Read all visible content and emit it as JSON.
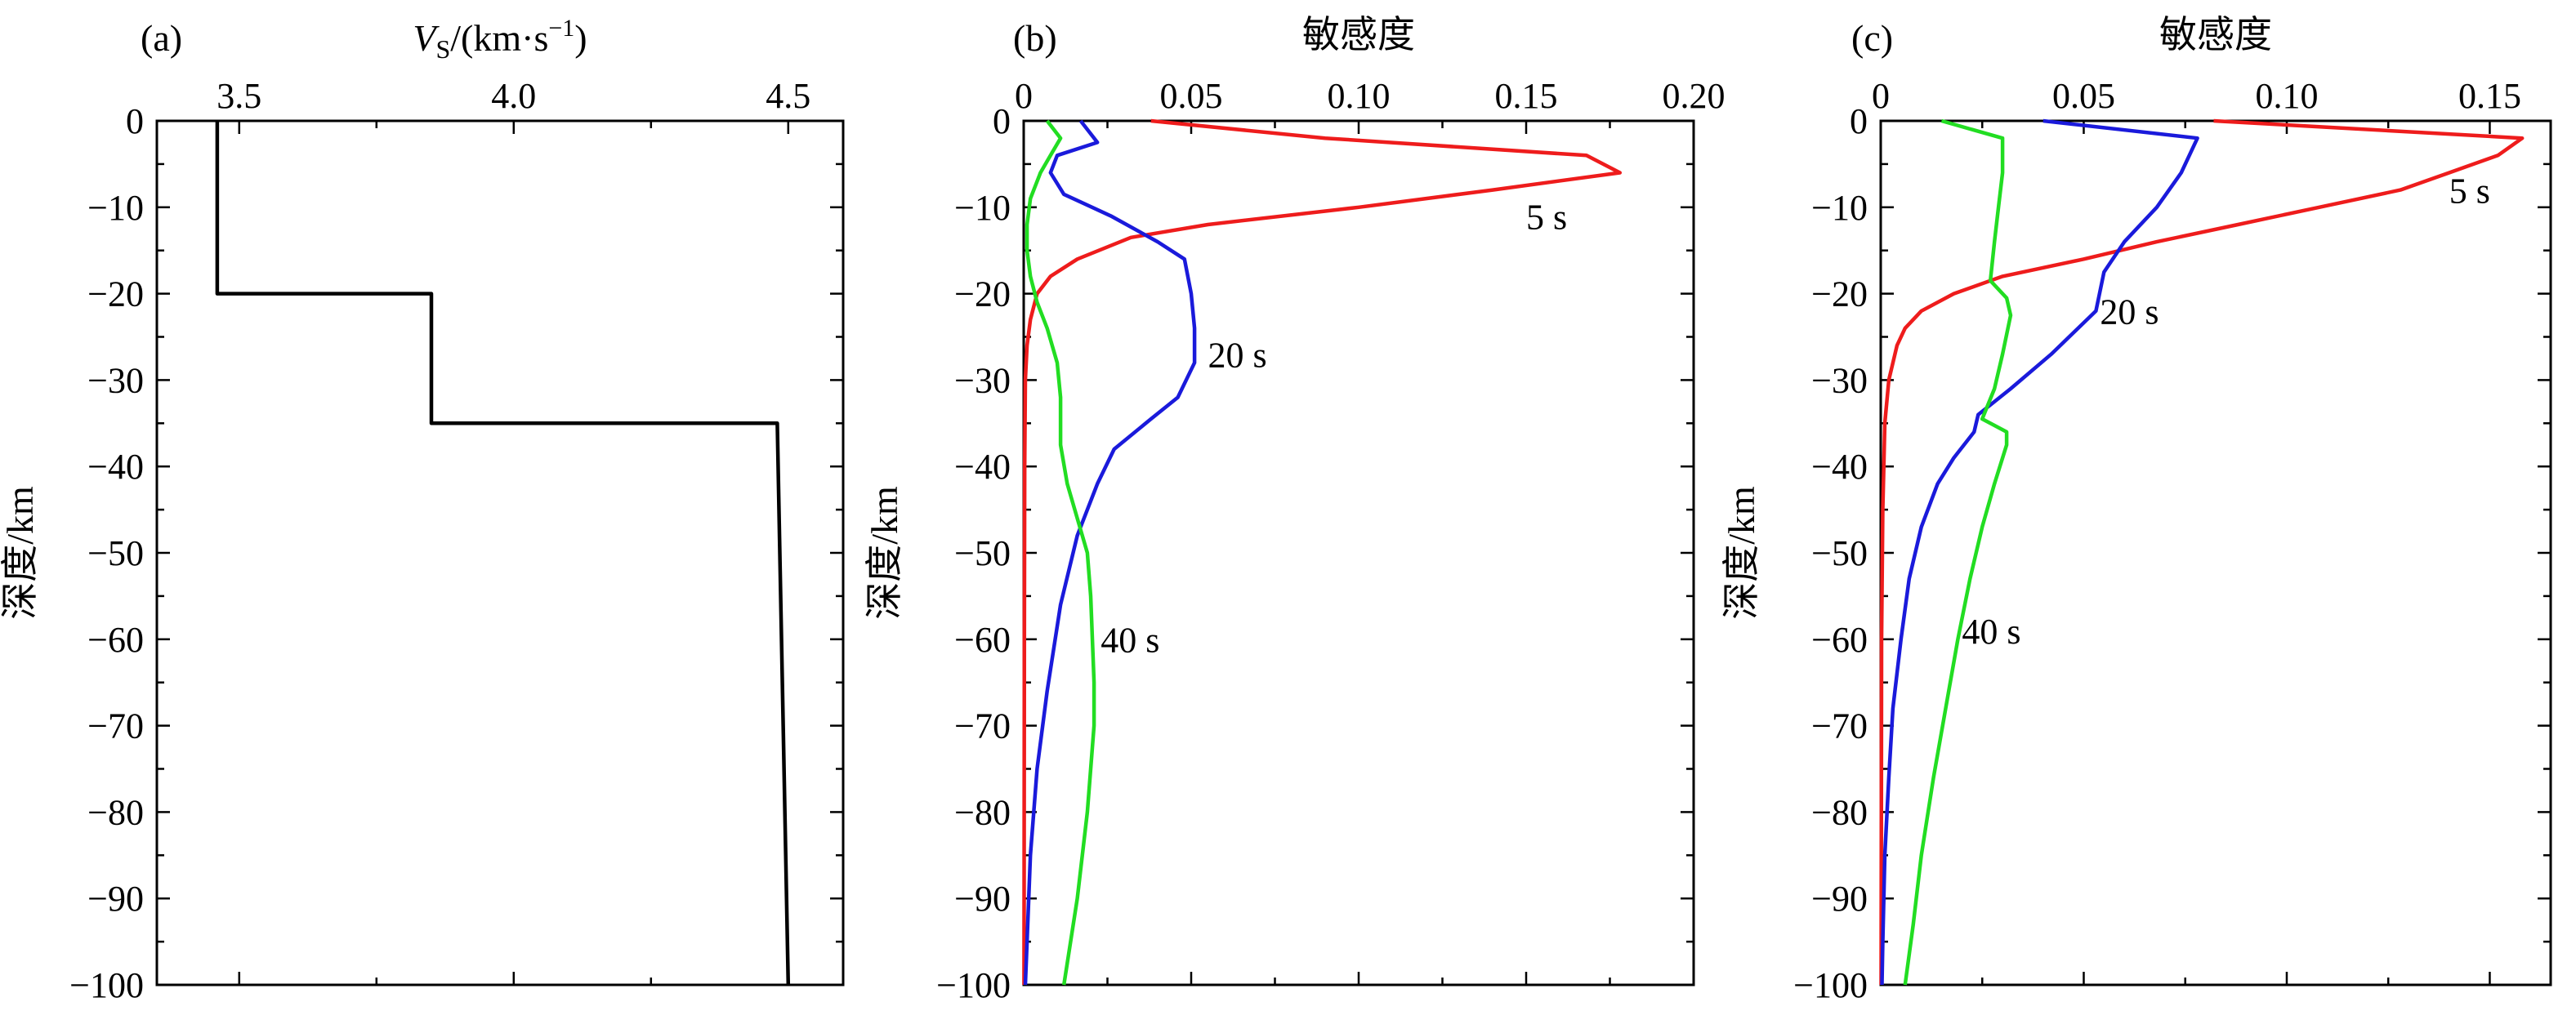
{
  "chart_data": [
    {
      "type": "line",
      "panel_label": "(a)",
      "xlabel_var": "V",
      "xlabel_sub": "S",
      "xlabel_unit": "/(km·s",
      "xlabel_sup": "−1",
      "xlabel_close": ")",
      "ylabel": "深度/km",
      "xlim": [
        3.35,
        4.6
      ],
      "ylim": [
        -100,
        0
      ],
      "x_ticks": [
        {
          "value": 3.5,
          "label": "3.5"
        },
        {
          "value": 4.0,
          "label": "4.0"
        },
        {
          "value": 4.5,
          "label": "4.5"
        }
      ],
      "y_ticks": [
        {
          "value": 0,
          "label": "0"
        },
        {
          "value": -10,
          "label": "−10"
        },
        {
          "value": -20,
          "label": "−20"
        },
        {
          "value": -30,
          "label": "−30"
        },
        {
          "value": -40,
          "label": "−40"
        },
        {
          "value": -50,
          "label": "−50"
        },
        {
          "value": -60,
          "label": "−60"
        },
        {
          "value": -70,
          "label": "−70"
        },
        {
          "value": -80,
          "label": "−80"
        },
        {
          "value": -90,
          "label": "−90"
        },
        {
          "value": -100,
          "label": "−100"
        }
      ],
      "series": [
        {
          "color": "#000000",
          "points": [
            [
              3.46,
              0
            ],
            [
              3.46,
              -20
            ],
            [
              3.85,
              -20
            ],
            [
              3.85,
              -35
            ],
            [
              4.48,
              -35
            ],
            [
              4.5,
              -100
            ]
          ]
        }
      ],
      "annotations": []
    },
    {
      "type": "line",
      "panel_label": "(b)",
      "xlabel": "敏感度",
      "ylabel": "深度/km",
      "xlim": [
        0,
        0.2
      ],
      "ylim": [
        -100,
        0
      ],
      "x_ticks": [
        {
          "value": 0,
          "label": "0"
        },
        {
          "value": 0.05,
          "label": "0.05"
        },
        {
          "value": 0.1,
          "label": "0.10"
        },
        {
          "value": 0.15,
          "label": "0.15"
        },
        {
          "value": 0.2,
          "label": "0.20"
        }
      ],
      "y_ticks": [
        {
          "value": 0,
          "label": "0"
        },
        {
          "value": -10,
          "label": "−10"
        },
        {
          "value": -20,
          "label": "−20"
        },
        {
          "value": -30,
          "label": "−30"
        },
        {
          "value": -40,
          "label": "−40"
        },
        {
          "value": -50,
          "label": "−50"
        },
        {
          "value": -60,
          "label": "−60"
        },
        {
          "value": -70,
          "label": "−70"
        },
        {
          "value": -80,
          "label": "−80"
        },
        {
          "value": -90,
          "label": "−90"
        },
        {
          "value": -100,
          "label": "−100"
        }
      ],
      "series": [
        {
          "color": "#ee1c1c",
          "points": [
            [
              0.038,
              0
            ],
            [
              0.09,
              -2
            ],
            [
              0.168,
              -4
            ],
            [
              0.178,
              -6
            ],
            [
              0.14,
              -8
            ],
            [
              0.1,
              -10
            ],
            [
              0.055,
              -12
            ],
            [
              0.032,
              -13.5
            ],
            [
              0.016,
              -16
            ],
            [
              0.008,
              -18
            ],
            [
              0.004,
              -20
            ],
            [
              0.002,
              -23
            ],
            [
              0.001,
              -26
            ],
            [
              0.0005,
              -30
            ],
            [
              0.0003,
              -40
            ],
            [
              0.0002,
              -60
            ],
            [
              0.0001,
              -100
            ]
          ]
        },
        {
          "color": "#1a1adb",
          "points": [
            [
              0.017,
              0
            ],
            [
              0.022,
              -2.5
            ],
            [
              0.01,
              -4
            ],
            [
              0.008,
              -6
            ],
            [
              0.012,
              -8.5
            ],
            [
              0.026,
              -11
            ],
            [
              0.04,
              -14
            ],
            [
              0.048,
              -16
            ],
            [
              0.05,
              -20
            ],
            [
              0.051,
              -24
            ],
            [
              0.051,
              -28
            ],
            [
              0.046,
              -32
            ],
            [
              0.038,
              -34.5
            ],
            [
              0.027,
              -38
            ],
            [
              0.022,
              -42
            ],
            [
              0.016,
              -48
            ],
            [
              0.011,
              -56
            ],
            [
              0.007,
              -66
            ],
            [
              0.004,
              -75
            ],
            [
              0.002,
              -85
            ],
            [
              0.001,
              -95
            ],
            [
              0.0005,
              -100
            ]
          ]
        },
        {
          "color": "#22dd22",
          "points": [
            [
              0.007,
              0
            ],
            [
              0.011,
              -2
            ],
            [
              0.008,
              -4
            ],
            [
              0.005,
              -6
            ],
            [
              0.002,
              -9
            ],
            [
              0.001,
              -12
            ],
            [
              0.001,
              -15
            ],
            [
              0.002,
              -18
            ],
            [
              0.004,
              -21
            ],
            [
              0.007,
              -24
            ],
            [
              0.01,
              -28
            ],
            [
              0.011,
              -32
            ],
            [
              0.011,
              -37.5
            ],
            [
              0.013,
              -42
            ],
            [
              0.016,
              -46
            ],
            [
              0.019,
              -50
            ],
            [
              0.02,
              -55
            ],
            [
              0.021,
              -65
            ],
            [
              0.021,
              -70
            ],
            [
              0.019,
              -80
            ],
            [
              0.016,
              -90
            ],
            [
              0.012,
              -100
            ]
          ]
        }
      ],
      "annotations": [
        {
          "text": "5 s",
          "x": 0.15,
          "y": -12.5
        },
        {
          "text": "20 s",
          "x": 0.055,
          "y": -28.5
        },
        {
          "text": "40 s",
          "x": 0.023,
          "y": -61.5
        }
      ]
    },
    {
      "type": "line",
      "panel_label": "(c)",
      "xlabel": "敏感度",
      "ylabel": "深度/km",
      "xlim": [
        0,
        0.165
      ],
      "ylim": [
        -100,
        0
      ],
      "x_ticks": [
        {
          "value": 0,
          "label": "0"
        },
        {
          "value": 0.05,
          "label": "0.05"
        },
        {
          "value": 0.1,
          "label": "0.10"
        },
        {
          "value": 0.15,
          "label": "0.15"
        }
      ],
      "y_ticks": [
        {
          "value": 0,
          "label": "0"
        },
        {
          "value": -10,
          "label": "−10"
        },
        {
          "value": -20,
          "label": "−20"
        },
        {
          "value": -30,
          "label": "−30"
        },
        {
          "value": -40,
          "label": "−40"
        },
        {
          "value": -50,
          "label": "−50"
        },
        {
          "value": -60,
          "label": "−60"
        },
        {
          "value": -70,
          "label": "−70"
        },
        {
          "value": -80,
          "label": "−80"
        },
        {
          "value": -90,
          "label": "−90"
        },
        {
          "value": -100,
          "label": "−100"
        }
      ],
      "series": [
        {
          "color": "#ee1c1c",
          "points": [
            [
              0.082,
              0
            ],
            [
              0.158,
              -2
            ],
            [
              0.152,
              -4
            ],
            [
              0.14,
              -6
            ],
            [
              0.128,
              -8
            ],
            [
              0.108,
              -10
            ],
            [
              0.088,
              -12
            ],
            [
              0.068,
              -14
            ],
            [
              0.05,
              -16
            ],
            [
              0.03,
              -18
            ],
            [
              0.018,
              -20
            ],
            [
              0.01,
              -22
            ],
            [
              0.006,
              -24
            ],
            [
              0.004,
              -26
            ],
            [
              0.002,
              -30
            ],
            [
              0.001,
              -35
            ],
            [
              0.0005,
              -45
            ],
            [
              0.0002,
              -60
            ],
            [
              0.0001,
              -100
            ]
          ]
        },
        {
          "color": "#1a1adb",
          "points": [
            [
              0.04,
              0
            ],
            [
              0.078,
              -2
            ],
            [
              0.074,
              -6
            ],
            [
              0.068,
              -10
            ],
            [
              0.06,
              -14
            ],
            [
              0.055,
              -17.5
            ],
            [
              0.053,
              -22
            ],
            [
              0.042,
              -27
            ],
            [
              0.032,
              -31
            ],
            [
              0.024,
              -34
            ],
            [
              0.023,
              -36
            ],
            [
              0.018,
              -39
            ],
            [
              0.014,
              -42
            ],
            [
              0.01,
              -47
            ],
            [
              0.007,
              -53
            ],
            [
              0.005,
              -60
            ],
            [
              0.003,
              -68
            ],
            [
              0.002,
              -76
            ],
            [
              0.001,
              -85
            ],
            [
              0.0005,
              -95
            ],
            [
              0.0003,
              -100
            ]
          ]
        },
        {
          "color": "#22dd22",
          "points": [
            [
              0.015,
              0
            ],
            [
              0.03,
              -2
            ],
            [
              0.03,
              -6
            ],
            [
              0.029,
              -10
            ],
            [
              0.028,
              -14
            ],
            [
              0.027,
              -18.5
            ],
            [
              0.031,
              -20.5
            ],
            [
              0.032,
              -22.5
            ],
            [
              0.03,
              -27
            ],
            [
              0.028,
              -31
            ],
            [
              0.025,
              -34.5
            ],
            [
              0.031,
              -36
            ],
            [
              0.031,
              -37.5
            ],
            [
              0.028,
              -42
            ],
            [
              0.025,
              -47
            ],
            [
              0.022,
              -53
            ],
            [
              0.019,
              -60
            ],
            [
              0.016,
              -68
            ],
            [
              0.013,
              -76
            ],
            [
              0.01,
              -85
            ],
            [
              0.008,
              -93
            ],
            [
              0.006,
              -100
            ]
          ]
        }
      ],
      "annotations": [
        {
          "text": "5 s",
          "x": 0.14,
          "y": -9.5
        },
        {
          "text": "20 s",
          "x": 0.054,
          "y": -23.5
        },
        {
          "text": "40 s",
          "x": 0.02,
          "y": -60.5
        }
      ]
    }
  ]
}
